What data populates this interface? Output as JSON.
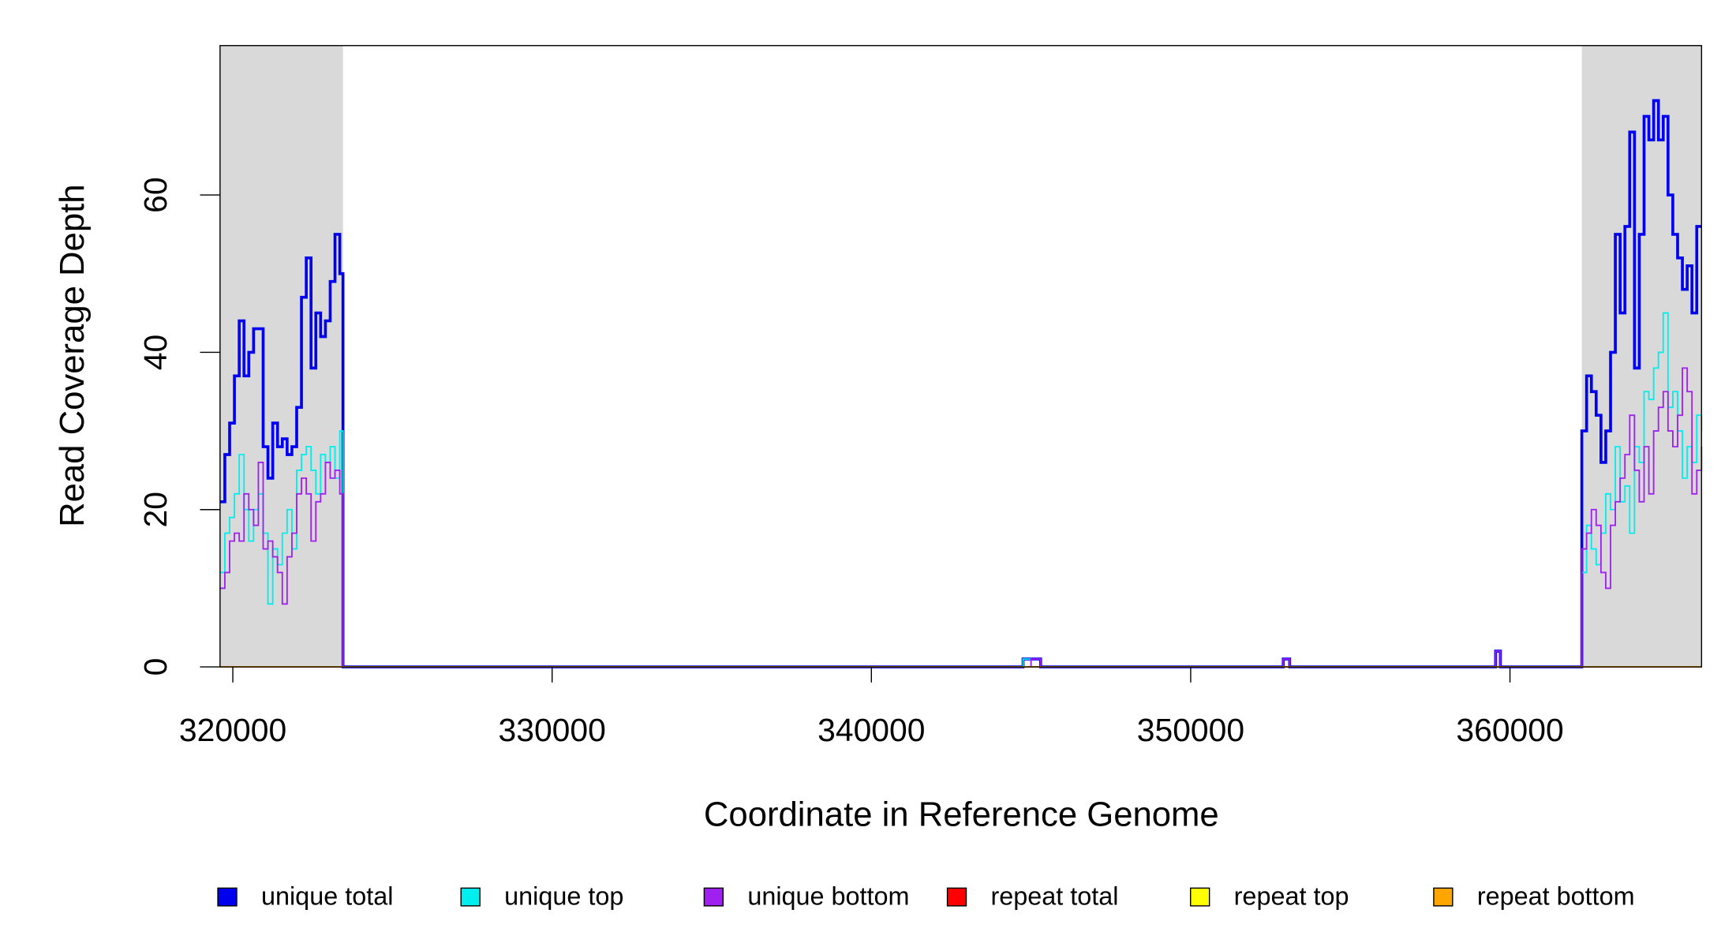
{
  "chart_data": {
    "type": "step",
    "xlabel": "Coordinate in Reference Genome",
    "ylabel": "Read Coverage Depth",
    "xlim": [
      319600,
      366000
    ],
    "xticks": [
      320000,
      330000,
      340000,
      350000,
      360000
    ],
    "ylim": [
      0,
      79
    ],
    "yticks": [
      0,
      20,
      40,
      60
    ],
    "shaded_regions": [
      [
        319600,
        323450
      ],
      [
        362250,
        366000
      ]
    ],
    "x": [
      319600,
      319750,
      319900,
      320050,
      320200,
      320350,
      320500,
      320650,
      320800,
      320950,
      321100,
      321250,
      321400,
      321550,
      321700,
      321850,
      322000,
      322150,
      322300,
      322450,
      322600,
      322750,
      322900,
      323050,
      323200,
      323350,
      323450,
      344750,
      345000,
      345300,
      352900,
      353100,
      359550,
      359700,
      362250,
      362400,
      362550,
      362700,
      362850,
      363000,
      363150,
      363300,
      363450,
      363600,
      363750,
      363900,
      364050,
      364200,
      364350,
      364500,
      364650,
      364800,
      364950,
      365100,
      365250,
      365400,
      365550,
      365700,
      365850,
      366000
    ],
    "series": [
      {
        "name": "unique total",
        "color": "#0000ee",
        "values": [
          21,
          27,
          31,
          37,
          44,
          37,
          40,
          43,
          43,
          28,
          24,
          31,
          28,
          29,
          27,
          28,
          33,
          47,
          52,
          38,
          45,
          42,
          44,
          49,
          55,
          50,
          0,
          1,
          1,
          0,
          1,
          0,
          2,
          0,
          30,
          37,
          35,
          32,
          26,
          30,
          40,
          55,
          45,
          56,
          68,
          38,
          55,
          70,
          67,
          72,
          67,
          70,
          60,
          55,
          52,
          48,
          51,
          45,
          56,
          56
        ]
      },
      {
        "name": "unique top",
        "color": "#00eeee",
        "values": [
          12,
          17,
          19,
          22,
          27,
          20,
          16,
          20,
          22,
          17,
          8,
          15,
          13,
          17,
          20,
          15,
          25,
          27,
          28,
          25,
          22,
          27,
          26,
          28,
          24,
          30,
          0,
          1,
          0,
          0,
          0,
          0,
          0,
          0,
          12,
          18,
          15,
          13,
          17,
          22,
          20,
          28,
          21,
          23,
          17,
          28,
          26,
          35,
          34,
          38,
          40,
          45,
          33,
          35,
          30,
          24,
          28,
          26,
          32,
          30
        ]
      },
      {
        "name": "unique bottom",
        "color": "#a020f0",
        "values": [
          10,
          12,
          16,
          17,
          16,
          22,
          20,
          18,
          26,
          15,
          16,
          14,
          12,
          8,
          14,
          17,
          22,
          24,
          22,
          16,
          21,
          22,
          26,
          24,
          25,
          22,
          0,
          0,
          1,
          0,
          1,
          0,
          2,
          0,
          15,
          17,
          20,
          18,
          12,
          10,
          18,
          21,
          24,
          27,
          32,
          25,
          21,
          28,
          22,
          30,
          33,
          35,
          30,
          28,
          32,
          38,
          35,
          22,
          25,
          28
        ]
      },
      {
        "name": "repeat total",
        "color": "#ff0000",
        "values": [
          0,
          0,
          0,
          0,
          0,
          0,
          0,
          0,
          0,
          0,
          0,
          0,
          0,
          0,
          0,
          0,
          0,
          0,
          0,
          0,
          0,
          0,
          0,
          0,
          0,
          0,
          0,
          0,
          0,
          0,
          0,
          0,
          0,
          0,
          0,
          0,
          0,
          0,
          0,
          0,
          0,
          0,
          0,
          0,
          0,
          0,
          0,
          0,
          0,
          0,
          0,
          0,
          0,
          0,
          0,
          0,
          0,
          0,
          0,
          0
        ]
      },
      {
        "name": "repeat top",
        "color": "#ffff00",
        "values": [
          0,
          0,
          0,
          0,
          0,
          0,
          0,
          0,
          0,
          0,
          0,
          0,
          0,
          0,
          0,
          0,
          0,
          0,
          0,
          0,
          0,
          0,
          0,
          0,
          0,
          0,
          0,
          0,
          0,
          0,
          0,
          0,
          0,
          0,
          0,
          0,
          0,
          0,
          0,
          0,
          0,
          0,
          0,
          0,
          0,
          0,
          0,
          0,
          0,
          0,
          0,
          0,
          0,
          0,
          0,
          0,
          0,
          0,
          0,
          0
        ]
      },
      {
        "name": "repeat bottom",
        "color": "#ffa500",
        "values": [
          0,
          0,
          0,
          0,
          0,
          0,
          0,
          0,
          0,
          0,
          0,
          0,
          0,
          0,
          0,
          0,
          0,
          0,
          0,
          0,
          0,
          0,
          0,
          0,
          0,
          0,
          0,
          0,
          0,
          0,
          0,
          0,
          0,
          0,
          0,
          0,
          0,
          0,
          0,
          0,
          0,
          0,
          0,
          0,
          0,
          0,
          0,
          0,
          0,
          0,
          0,
          0,
          0,
          0,
          0,
          0,
          0,
          0,
          0,
          0
        ]
      }
    ],
    "legend": "bottom"
  }
}
